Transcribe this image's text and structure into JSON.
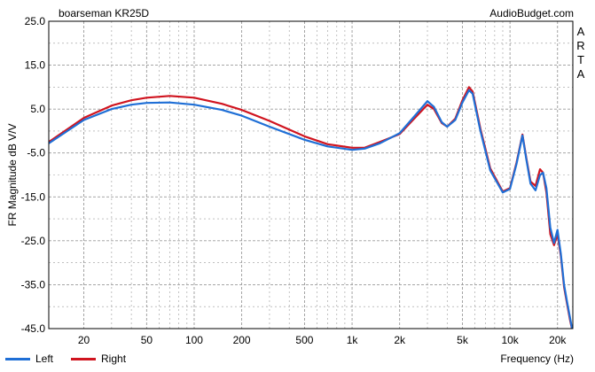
{
  "header": {
    "title": "boarseman KR25D",
    "site": "AudioBudget.com",
    "side_letters": [
      "A",
      "R",
      "T",
      "A"
    ]
  },
  "colors": {
    "left": "#1f6fd6",
    "right": "#d0141f",
    "grid": "#9a9a9a",
    "frame": "#000000"
  },
  "legend": {
    "items": [
      {
        "name": "Left",
        "color": "#1f6fd6"
      },
      {
        "name": "Right",
        "color": "#d0141f"
      }
    ]
  },
  "chart_data": {
    "type": "line",
    "title": "boarseman KR25D",
    "xlabel": "Frequency (Hz)",
    "ylabel": "FR Magnitude dB V/V",
    "x_scale": "log",
    "xlim": [
      12,
      25000
    ],
    "ylim": [
      -45,
      25
    ],
    "x_ticks": [
      20,
      50,
      100,
      200,
      500,
      1000,
      2000,
      5000,
      10000,
      20000
    ],
    "x_tick_labels": [
      "20",
      "50",
      "100",
      "200",
      "500",
      "1k",
      "2k",
      "5k",
      "10k",
      "20k"
    ],
    "y_ticks": [
      25,
      15,
      5,
      -5,
      -15,
      -25,
      -35,
      -45
    ],
    "y_tick_labels": [
      "25.0",
      "15.0",
      "5.0",
      "-5.0",
      "-15.0",
      "-25.0",
      "-35.0",
      "-45.0"
    ],
    "grid": true,
    "legend_position": "bottom-left",
    "series": [
      {
        "name": "Left",
        "x": [
          12,
          20,
          30,
          40,
          50,
          70,
          100,
          150,
          200,
          300,
          500,
          700,
          1000,
          1200,
          1500,
          2000,
          2500,
          3000,
          3300,
          3700,
          4000,
          4500,
          5000,
          5500,
          5800,
          6500,
          7500,
          9000,
          10000,
          11000,
          12000,
          12700,
          13500,
          14500,
          15500,
          16200,
          17000,
          18000,
          19000,
          20000,
          21000,
          22000,
          23000,
          24000,
          25000
        ],
        "y": [
          -2.8,
          2.5,
          5.0,
          6.0,
          6.4,
          6.5,
          6.0,
          4.8,
          3.5,
          1.0,
          -2.0,
          -3.5,
          -4.3,
          -4.0,
          -2.8,
          -0.5,
          3.5,
          6.8,
          5.5,
          2.0,
          1.0,
          2.5,
          6.5,
          9.3,
          8.5,
          0.0,
          -9.0,
          -14.0,
          -13.2,
          -7.5,
          -1.0,
          -6.5,
          -12.0,
          -13.5,
          -10.0,
          -9.5,
          -13.0,
          -22.0,
          -25.5,
          -22.5,
          -28.0,
          -35.0,
          -39.0,
          -42.5,
          -46.0
        ]
      },
      {
        "name": "Right",
        "x": [
          12,
          20,
          30,
          40,
          50,
          70,
          100,
          150,
          200,
          300,
          500,
          700,
          1000,
          1200,
          1500,
          2000,
          2500,
          3000,
          3300,
          3700,
          4000,
          4500,
          5000,
          5500,
          5800,
          6500,
          7500,
          9000,
          10000,
          11000,
          12000,
          12700,
          13500,
          14500,
          15500,
          16200,
          17000,
          18000,
          19000,
          20000,
          21000,
          22000,
          23000,
          24000,
          25000
        ],
        "y": [
          -2.5,
          3.0,
          5.8,
          7.0,
          7.6,
          8.0,
          7.6,
          6.2,
          4.8,
          2.3,
          -1.2,
          -3.0,
          -3.8,
          -3.8,
          -2.5,
          -0.7,
          3.0,
          6.0,
          5.0,
          1.8,
          1.0,
          2.8,
          7.0,
          10.0,
          9.0,
          0.5,
          -8.5,
          -13.8,
          -13.0,
          -7.2,
          -0.8,
          -6.2,
          -11.5,
          -12.5,
          -8.7,
          -9.5,
          -14.0,
          -23.5,
          -26.0,
          -23.5,
          -28.5,
          -35.5,
          -39.5,
          -43.0,
          -46.0
        ]
      }
    ]
  }
}
